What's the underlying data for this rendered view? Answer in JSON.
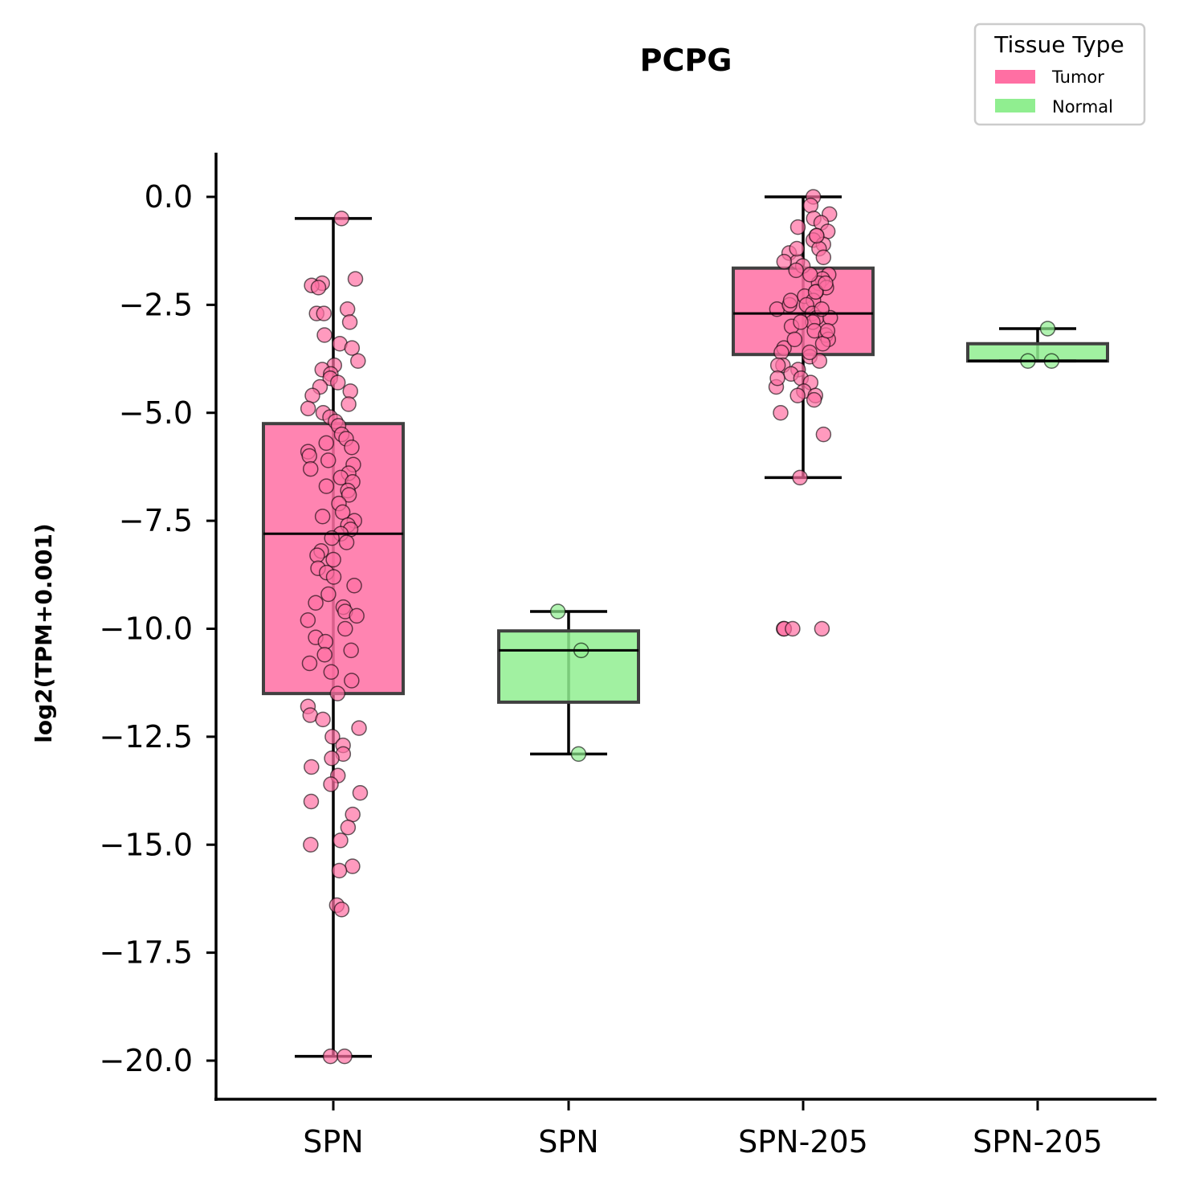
{
  "chart_data": {
    "type": "box",
    "title": "PCPG",
    "ylabel": "log2(TPM+0.001)",
    "xlabel": "",
    "ylim": [
      -20.9,
      1.0
    ],
    "yticks": [
      0.0,
      -2.5,
      -5.0,
      -7.5,
      -10.0,
      -12.5,
      -15.0,
      -17.5,
      -20.0
    ],
    "ytick_labels": [
      "0.0",
      "−2.5",
      "−5.0",
      "−7.5",
      "−10.0",
      "−12.5",
      "−15.0",
      "−17.5",
      "−20.0"
    ],
    "categories": [
      "SPN",
      "SPN",
      "SPN-205",
      "SPN-205"
    ],
    "legend": {
      "title": "Tissue Type",
      "position": "top-right",
      "entries": [
        {
          "label": "Tumor",
          "color": "#ff6fa3"
        },
        {
          "label": "Normal",
          "color": "#90ee90"
        }
      ]
    },
    "boxes": [
      {
        "category": "SPN",
        "tissue": "Tumor",
        "color": "#ff6fa3",
        "whisker_low": -19.9,
        "q1": -11.5,
        "median": -7.8,
        "q3": -5.25,
        "whisker_high": -0.5,
        "points": [
          -0.5,
          -1.9,
          -2.0,
          -2.05,
          -2.1,
          -2.6,
          -2.7,
          -2.7,
          -2.9,
          -3.2,
          -3.4,
          -3.5,
          -3.8,
          -3.9,
          -4.0,
          -4.1,
          -4.2,
          -4.3,
          -4.4,
          -4.5,
          -4.6,
          -4.8,
          -4.9,
          -5.0,
          -5.1,
          -5.2,
          -5.3,
          -5.5,
          -5.6,
          -5.7,
          -5.8,
          -5.9,
          -6.0,
          -6.1,
          -6.2,
          -6.3,
          -6.4,
          -6.5,
          -6.6,
          -6.7,
          -6.8,
          -6.9,
          -7.1,
          -7.3,
          -7.4,
          -7.5,
          -7.6,
          -7.7,
          -7.8,
          -7.9,
          -8.0,
          -8.2,
          -8.3,
          -8.4,
          -8.6,
          -8.7,
          -8.8,
          -9.0,
          -9.2,
          -9.4,
          -9.5,
          -9.6,
          -9.7,
          -9.8,
          -10.0,
          -10.2,
          -10.3,
          -10.5,
          -10.6,
          -10.8,
          -11.0,
          -11.2,
          -11.5,
          -11.8,
          -12.0,
          -12.1,
          -12.3,
          -12.5,
          -12.7,
          -12.9,
          -13.0,
          -13.2,
          -13.4,
          -13.6,
          -13.8,
          -14.0,
          -14.3,
          -14.6,
          -14.9,
          -15.0,
          -15.5,
          -15.6,
          -16.4,
          -16.5,
          -19.9,
          -19.9
        ],
        "seed": 11
      },
      {
        "category": "SPN",
        "tissue": "Normal",
        "color": "#90ee90",
        "whisker_low": -12.9,
        "q1": -11.7,
        "median": -10.5,
        "q3": -10.05,
        "whisker_high": -9.6,
        "points": [
          -9.6,
          -10.5,
          -12.9
        ],
        "seed": 23
      },
      {
        "category": "SPN-205",
        "tissue": "Tumor",
        "color": "#ff6fa3",
        "whisker_low": -6.5,
        "q1": -3.65,
        "median": -2.7,
        "q3": -1.65,
        "whisker_high": 0.0,
        "points": [
          0.0,
          -0.2,
          -0.4,
          -0.5,
          -0.6,
          -0.7,
          -0.8,
          -0.9,
          -1.0,
          -1.1,
          -1.2,
          -1.3,
          -1.4,
          -1.5,
          -1.6,
          -1.7,
          -1.8,
          -1.9,
          -2.0,
          -2.1,
          -2.2,
          -2.3,
          -2.4,
          -2.5,
          -2.6,
          -2.7,
          -2.8,
          -2.9,
          -3.0,
          -3.1,
          -3.2,
          -3.3,
          -3.4,
          -3.5,
          -3.6,
          -3.7,
          -3.8,
          -3.9,
          -4.0,
          -4.1,
          -4.2,
          -4.3,
          -4.4,
          -4.5,
          -4.6,
          -4.6,
          -4.7,
          -5.0,
          -5.5,
          -6.5,
          -10.0,
          -10.0,
          -10.0,
          -10.0,
          -2.2,
          -2.5,
          -2.8,
          -3.1,
          -1.5,
          -1.8,
          -2.0,
          -2.4,
          -3.6,
          -3.9,
          -4.2,
          -1.2,
          -0.9,
          -2.6,
          -3.3,
          -2.9
        ],
        "seed": 37
      },
      {
        "category": "SPN-205",
        "tissue": "Normal",
        "color": "#90ee90",
        "whisker_low": -3.8,
        "q1": -3.8,
        "median": -3.8,
        "q3": -3.4,
        "whisker_high": -3.05,
        "points": [
          -3.05,
          -3.8,
          -3.8
        ],
        "seed": 41
      }
    ]
  }
}
